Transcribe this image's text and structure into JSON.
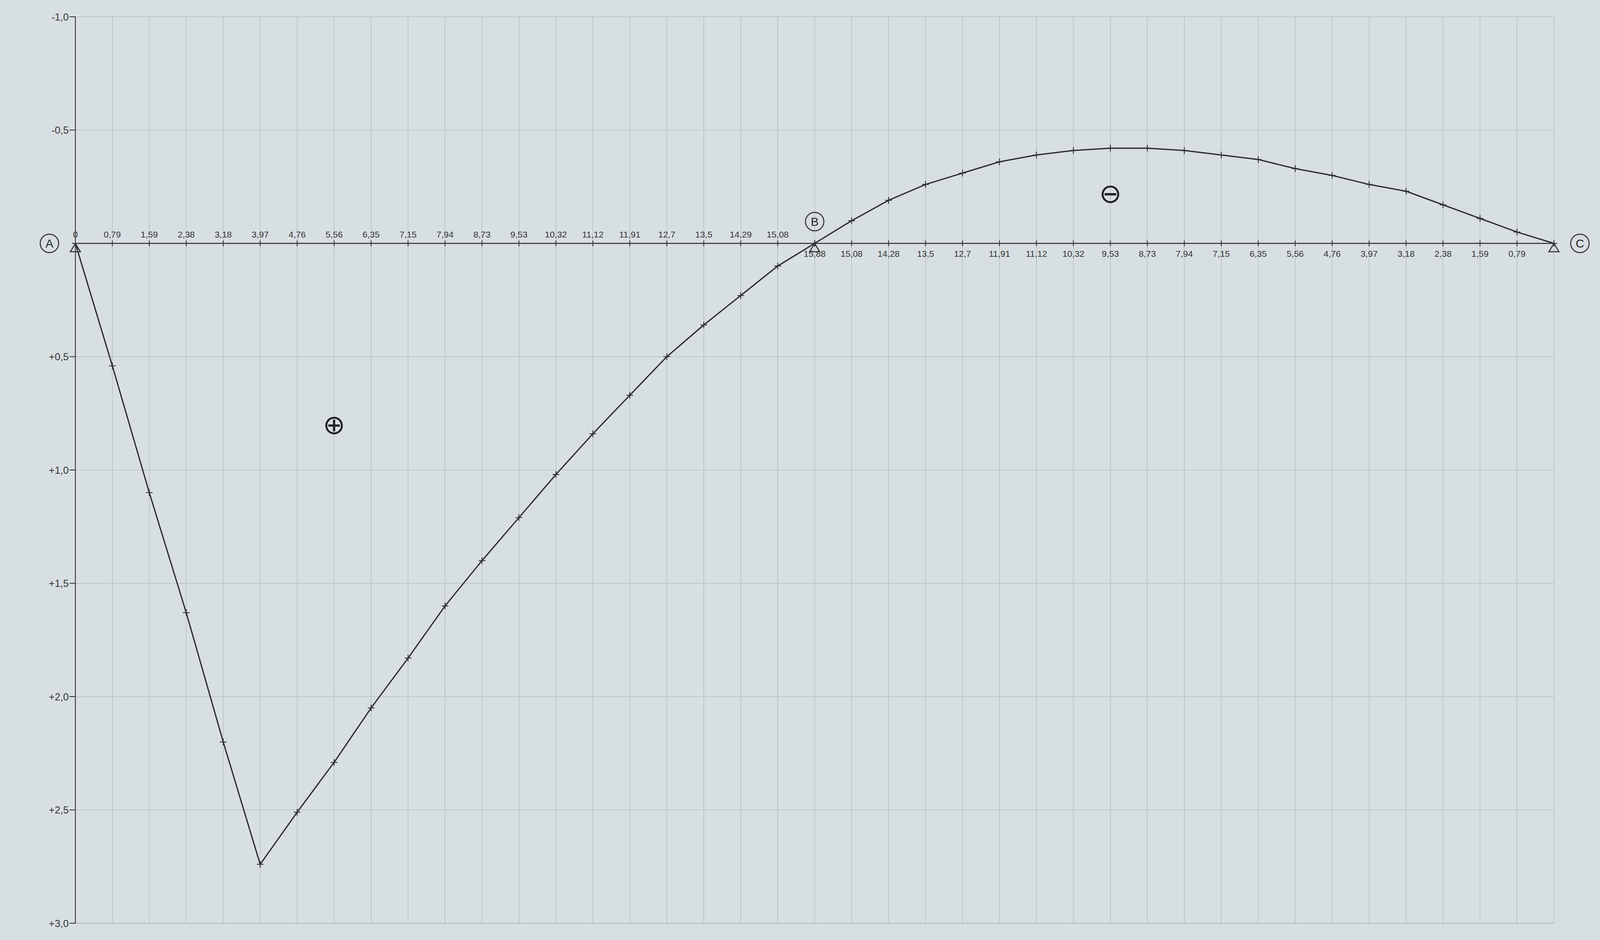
{
  "chart_data": {
    "type": "line",
    "categories": [
      "0",
      "0,79",
      "1,59",
      "2,38",
      "3,18",
      "3,97",
      "4,76",
      "5,56",
      "6,35",
      "7,15",
      "7,94",
      "8,73",
      "9,53",
      "10,32",
      "11,12",
      "11,91",
      "12,7",
      "13,5",
      "14,29",
      "15,08",
      "15,88",
      "15,08",
      "14,28",
      "13,5",
      "12,7",
      "11,91",
      "11,12",
      "10,32",
      "9,53",
      "8,73",
      "7,94",
      "7,15",
      "6,35",
      "5,56",
      "4,76",
      "3,97",
      "3,18",
      "2,38",
      "1,59",
      "0,79",
      null
    ],
    "values": [
      0,
      0.54,
      1.1,
      1.63,
      2.2,
      2.74,
      2.51,
      2.29,
      2.05,
      1.83,
      1.6,
      1.4,
      1.21,
      1.02,
      0.84,
      0.67,
      0.5,
      0.36,
      0.23,
      0.1,
      0,
      -0.1,
      -0.19,
      -0.26,
      -0.31,
      -0.36,
      -0.39,
      -0.41,
      -0.42,
      -0.42,
      -0.41,
      -0.39,
      -0.37,
      -0.33,
      -0.3,
      -0.26,
      -0.23,
      -0.17,
      -0.11,
      -0.05,
      0
    ],
    "color": "#2b2b2b",
    "marker": "cross",
    "ylim": [
      -1,
      3
    ],
    "yticks": [
      {
        "value": -1,
        "label": "-1,0"
      },
      {
        "value": -0.5,
        "label": "-0,5"
      },
      {
        "value": 0.5,
        "label": "+0,5"
      },
      {
        "value": 1,
        "label": "+1,0"
      },
      {
        "value": 1.5,
        "label": "+1,5"
      },
      {
        "value": 2,
        "label": "+2,0"
      },
      {
        "value": 2.5,
        "label": "+2,5"
      },
      {
        "value": 3,
        "label": "+3,0"
      }
    ],
    "grid": true,
    "supports": [
      {
        "label": "A",
        "x": 0
      },
      {
        "label": "B",
        "x": 20
      },
      {
        "label": "C",
        "x": 40
      }
    ],
    "annotations": [
      {
        "text": "⊕",
        "x": 7,
        "y": 0.8
      },
      {
        "text": "⊖",
        "x": 28,
        "y": -0.22
      }
    ]
  }
}
